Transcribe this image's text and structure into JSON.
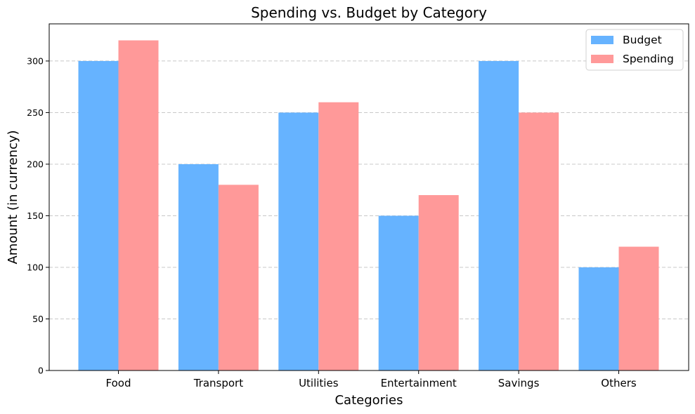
{
  "chart_data": {
    "type": "bar",
    "title": "Spending vs. Budget by Category",
    "xlabel": "Categories",
    "ylabel": "Amount (in currency)",
    "categories": [
      "Food",
      "Transport",
      "Utilities",
      "Entertainment",
      "Savings",
      "Others"
    ],
    "series": [
      {
        "name": "Budget",
        "values": [
          300,
          200,
          250,
          150,
          300,
          100
        ],
        "color": "#66b3ff"
      },
      {
        "name": "Spending",
        "values": [
          320,
          180,
          260,
          170,
          250,
          120
        ],
        "color": "#ff9999"
      }
    ],
    "ylim": [
      0,
      336
    ],
    "yticks": [
      0,
      50,
      100,
      150,
      200,
      250,
      300
    ],
    "grid": "y-dashed",
    "legend_position": "top-right"
  }
}
